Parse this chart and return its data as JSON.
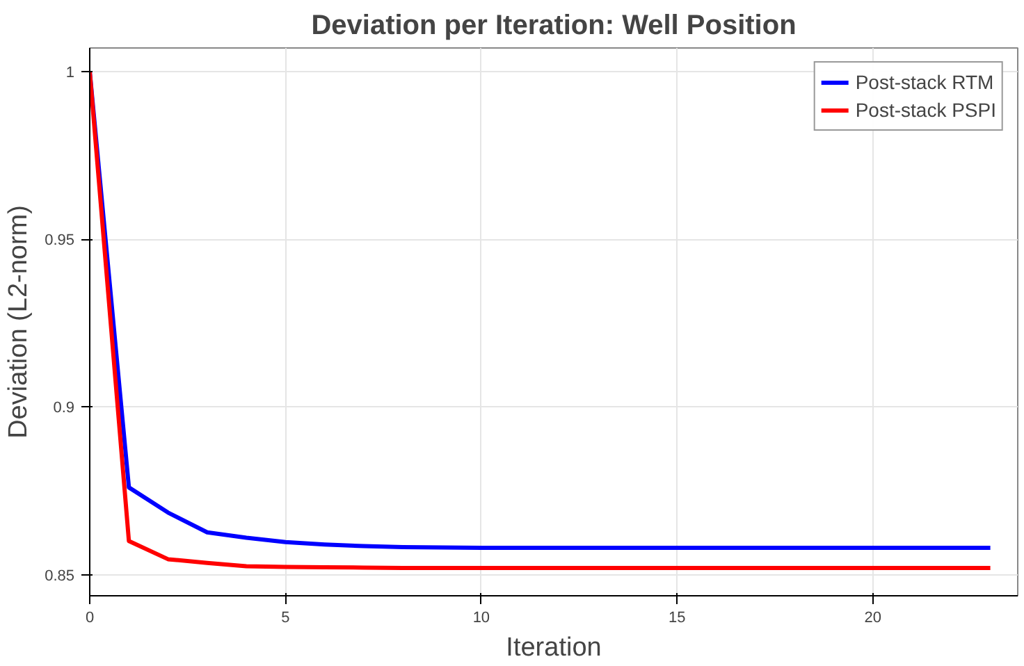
{
  "chart_data": {
    "type": "line",
    "title": "Deviation per Iteration: Well Position",
    "xlabel": "Iteration",
    "ylabel": "Deviation (L2-norm)",
    "x": [
      0,
      1,
      2,
      3,
      4,
      5,
      6,
      7,
      8,
      9,
      10,
      11,
      12,
      13,
      14,
      15,
      16,
      17,
      18,
      19,
      20,
      21,
      22,
      23
    ],
    "series": [
      {
        "name": "Post-stack RTM",
        "color": "#0000ff",
        "values": [
          1.0,
          0.876,
          0.8685,
          0.8626,
          0.861,
          0.8597,
          0.859,
          0.8585,
          0.8582,
          0.8581,
          0.858,
          0.858,
          0.858,
          0.858,
          0.858,
          0.858,
          0.858,
          0.858,
          0.858,
          0.858,
          0.858,
          0.858,
          0.858,
          0.858
        ]
      },
      {
        "name": "Post-stack PSPI",
        "color": "#ff0000",
        "values": [
          1.0,
          0.86,
          0.8546,
          0.8535,
          0.8525,
          0.8523,
          0.8522,
          0.8521,
          0.852,
          0.852,
          0.852,
          0.852,
          0.852,
          0.852,
          0.852,
          0.852,
          0.852,
          0.852,
          0.852,
          0.852,
          0.852,
          0.852,
          0.852,
          0.852
        ]
      }
    ],
    "xlim": [
      0,
      23.7
    ],
    "ylim": [
      0.8437,
      1.007
    ],
    "xticks": [
      0,
      5,
      10,
      15,
      20
    ],
    "yticks": [
      0.85,
      0.9,
      0.95,
      1
    ],
    "grid": true,
    "legend": "top right",
    "line_style": "solid"
  }
}
